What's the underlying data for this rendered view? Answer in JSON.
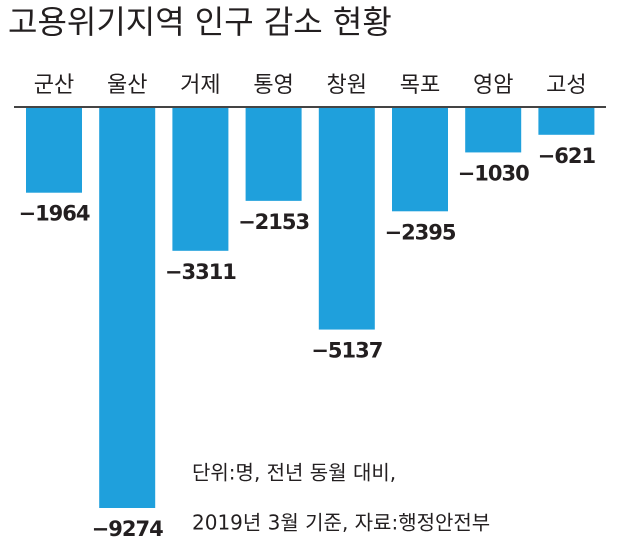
{
  "chart_data": {
    "type": "bar",
    "title": "고용위기지역 인구 감소 현황",
    "categories": [
      "군산",
      "울산",
      "거제",
      "통영",
      "창원",
      "목포",
      "영암",
      "고성"
    ],
    "values": [
      -1964,
      -9274,
      -3311,
      -2153,
      -5137,
      -2395,
      -1030,
      -621
    ],
    "value_labels": [
      "−1964",
      "−9274",
      "−3311",
      "−2153",
      "−5137",
      "−2395",
      "−1030",
      "−621"
    ],
    "color": "#1fa0dc",
    "notes": [
      "단위:명, 전년 동월 대비,",
      "2019년 3월 기준, 자료:행정안전부"
    ]
  }
}
